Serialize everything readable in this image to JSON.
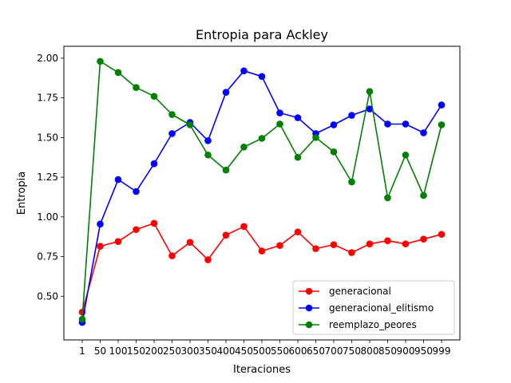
{
  "chart_data": {
    "type": "line",
    "title": "Entropia para Ackley",
    "xlabel": "Iteraciones",
    "ylabel": "Entropia",
    "categories": [
      "1",
      "50",
      "100",
      "150",
      "200",
      "250",
      "300",
      "350",
      "400",
      "450",
      "500",
      "550",
      "600",
      "650",
      "700",
      "750",
      "800",
      "850",
      "900",
      "950",
      "999"
    ],
    "ylim": [
      0.225,
      2.075
    ],
    "yticks": [
      "0.50",
      "0.75",
      "1.00",
      "1.25",
      "1.50",
      "1.75",
      "2.00"
    ],
    "grid": false,
    "legend_position": "lower right",
    "series": [
      {
        "name": "generacional",
        "color": "#ff0000",
        "values": [
          0.4,
          0.815,
          0.845,
          0.92,
          0.96,
          0.755,
          0.84,
          0.73,
          0.885,
          0.94,
          0.785,
          0.82,
          0.905,
          0.8,
          0.825,
          0.775,
          0.83,
          0.85,
          0.83,
          0.86,
          0.89
        ]
      },
      {
        "name": "generacional_elitismo",
        "color": "#0000ff",
        "values": [
          0.335,
          0.955,
          1.235,
          1.16,
          1.335,
          1.525,
          1.595,
          1.48,
          1.785,
          1.92,
          1.885,
          1.655,
          1.625,
          1.525,
          1.58,
          1.64,
          1.68,
          1.585,
          1.585,
          1.53,
          1.705
        ]
      },
      {
        "name": "reemplazo_peores",
        "color": "#008000",
        "values": [
          0.355,
          1.98,
          1.91,
          1.815,
          1.76,
          1.645,
          1.58,
          1.39,
          1.295,
          1.44,
          1.495,
          1.585,
          1.375,
          1.5,
          1.41,
          1.22,
          1.79,
          1.12,
          1.39,
          1.135,
          1.58
        ]
      }
    ]
  }
}
